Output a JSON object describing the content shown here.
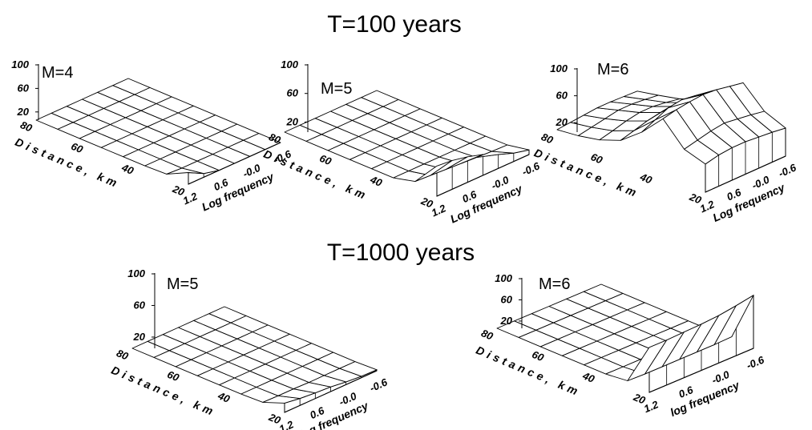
{
  "titles": [
    "T=100 years",
    "T=1000 years"
  ],
  "chart_data": [
    {
      "type": "surface",
      "group": "T=100 years",
      "label": "M=4",
      "distance_ticks": [
        "80",
        "60",
        "40",
        "20"
      ],
      "freq_ticks": [
        "1.2",
        "0.6",
        "-0.0",
        "-0.6"
      ],
      "z_ticks": [
        "100",
        "60",
        "20"
      ],
      "xlabel": "Distance, km",
      "ylabel": "Log frequency",
      "zlim": [
        0,
        100
      ],
      "log_frequency": [
        1.2,
        0.9,
        0.6,
        0.3,
        0.0,
        -0.3,
        -0.6
      ],
      "distance_km": [
        20,
        30,
        40,
        50,
        60,
        70,
        80,
        90
      ],
      "z": [
        [
          25,
          8,
          0,
          0,
          0,
          0,
          0
        ],
        [
          2,
          0,
          0,
          0,
          0,
          0,
          0
        ],
        [
          0,
          0,
          0,
          0,
          0,
          0,
          0
        ],
        [
          0,
          0,
          0,
          0,
          0,
          0,
          0
        ],
        [
          0,
          0,
          0,
          0,
          0,
          0,
          0
        ],
        [
          0,
          0,
          0,
          0,
          0,
          0,
          0
        ],
        [
          0,
          0,
          0,
          0,
          0,
          0,
          0
        ],
        [
          0,
          0,
          0,
          0,
          0,
          0,
          0
        ]
      ]
    },
    {
      "type": "surface",
      "group": "T=100 years",
      "label": "M=5",
      "distance_ticks": [
        "80",
        "60",
        "40",
        "20"
      ],
      "freq_ticks": [
        "1.2",
        "0.6",
        "-0.0",
        "-0.6"
      ],
      "z_ticks": [
        "100",
        "60",
        "20"
      ],
      "xlabel": "Distance, km",
      "ylabel": "Log frequency",
      "zlim": [
        0,
        100
      ],
      "log_frequency": [
        1.2,
        0.9,
        0.6,
        0.3,
        0.0,
        -0.3,
        -0.6
      ],
      "distance_km": [
        20,
        30,
        40,
        50,
        60,
        70,
        80,
        90
      ],
      "z": [
        [
          65,
          62,
          55,
          45,
          30,
          18,
          10
        ],
        [
          12,
          10,
          8,
          6,
          4,
          2,
          1
        ],
        [
          0,
          0,
          0,
          0,
          0,
          0,
          0
        ],
        [
          0,
          0,
          0,
          0,
          0,
          0,
          0
        ],
        [
          0,
          0,
          0,
          0,
          0,
          0,
          0
        ],
        [
          0,
          0,
          0,
          0,
          0,
          0,
          0
        ],
        [
          0,
          0,
          0,
          0,
          0,
          0,
          0
        ],
        [
          0,
          0,
          0,
          0,
          0,
          0,
          0
        ]
      ]
    },
    {
      "type": "surface",
      "group": "T=100 years",
      "label": "M=6",
      "distance_ticks": [
        "80",
        "60",
        "40",
        "20"
      ],
      "freq_ticks": [
        "1.2",
        "0.6",
        "-0.0",
        "-0.6"
      ],
      "z_ticks": [
        "100",
        "60",
        "20"
      ],
      "xlabel": "Distance, km",
      "ylabel": "Log frequency",
      "zlim": [
        0,
        100
      ],
      "log_frequency": [
        1.2,
        0.9,
        0.6,
        0.3,
        0.0,
        -0.3,
        -0.6
      ],
      "distance_km": [
        20,
        30,
        40,
        50,
        60,
        70,
        80,
        90
      ],
      "z": [
        [
          45,
          50,
          52,
          52,
          50,
          48,
          45
        ],
        [
          55,
          60,
          65,
          68,
          65,
          62,
          58
        ],
        [
          90,
          95,
          98,
          100,
          98,
          94,
          90
        ],
        [
          55,
          65,
          75,
          78,
          75,
          70,
          65
        ],
        [
          28,
          34,
          40,
          44,
          44,
          40,
          36
        ],
        [
          15,
          20,
          26,
          30,
          30,
          27,
          23
        ],
        [
          8,
          12,
          16,
          20,
          20,
          18,
          15
        ],
        [
          4,
          6,
          8,
          10,
          10,
          9,
          8
        ]
      ]
    },
    {
      "type": "surface",
      "group": "T=1000 years",
      "label": "M=5",
      "distance_ticks": [
        "80",
        "60",
        "40",
        "20"
      ],
      "freq_ticks": [
        "1.2",
        "0.6",
        "-0.0",
        "-0.6"
      ],
      "z_ticks": [
        "100",
        "60",
        "20"
      ],
      "xlabel": "Distance, km",
      "ylabel": "log frequency",
      "zlim": [
        0,
        100
      ],
      "log_frequency": [
        1.2,
        0.9,
        0.6,
        0.3,
        0.0,
        -0.3,
        -0.6
      ],
      "distance_km": [
        20,
        30,
        40,
        50,
        60,
        70,
        80,
        90
      ],
      "z": [
        [
          20,
          15,
          12,
          10,
          6,
          3,
          2
        ],
        [
          2,
          1,
          1,
          0,
          0,
          0,
          0
        ],
        [
          0,
          0,
          0,
          0,
          0,
          0,
          0
        ],
        [
          0,
          0,
          0,
          0,
          0,
          0,
          0
        ],
        [
          0,
          0,
          0,
          0,
          0,
          0,
          0
        ],
        [
          0,
          0,
          0,
          0,
          0,
          0,
          0
        ],
        [
          0,
          0,
          0,
          0,
          0,
          0,
          0
        ],
        [
          0,
          0,
          0,
          0,
          0,
          0,
          0
        ]
      ]
    },
    {
      "type": "surface",
      "group": "T=1000 years",
      "label": "M=6",
      "distance_ticks": [
        "80",
        "60",
        "40",
        "20"
      ],
      "freq_ticks": [
        "1.2",
        "0.6",
        "-0.0",
        "-0.6"
      ],
      "z_ticks": [
        "100",
        "60",
        "20"
      ],
      "xlabel": "Distance, km",
      "ylabel": "log frequency",
      "zlim": [
        0,
        100
      ],
      "log_frequency": [
        1.2,
        0.9,
        0.6,
        0.3,
        0.0,
        -0.3,
        -0.6
      ],
      "distance_km": [
        20,
        30,
        40,
        50,
        60,
        70,
        80,
        90
      ],
      "z": [
        [
          72,
          72,
          73,
          74,
          76,
          80,
          85
        ],
        [
          4,
          3,
          3,
          3,
          3,
          3,
          4
        ],
        [
          0,
          0,
          0,
          0,
          0,
          0,
          0
        ],
        [
          0,
          0,
          0,
          0,
          0,
          0,
          0
        ],
        [
          0,
          0,
          0,
          0,
          0,
          0,
          0
        ],
        [
          0,
          0,
          0,
          0,
          0,
          0,
          0
        ],
        [
          0,
          0,
          0,
          0,
          0,
          0,
          0
        ],
        [
          0,
          0,
          0,
          0,
          0,
          0,
          0
        ]
      ]
    }
  ]
}
